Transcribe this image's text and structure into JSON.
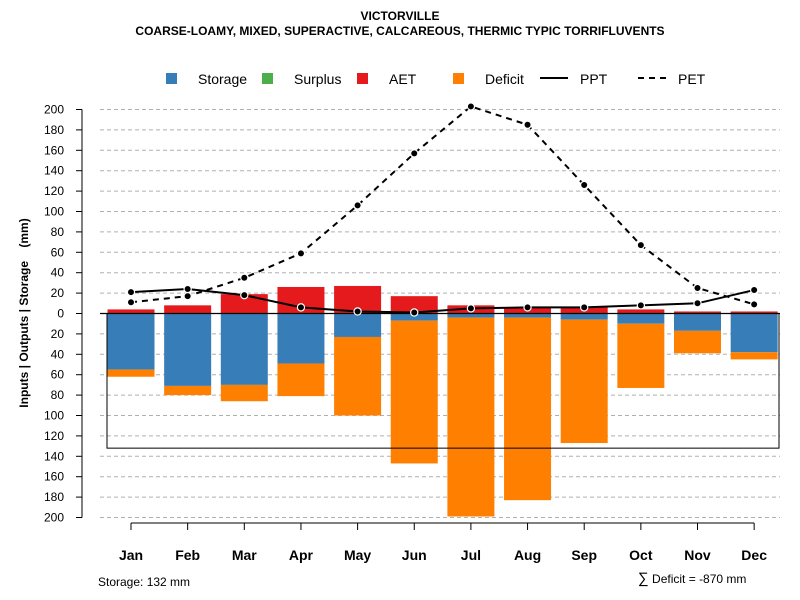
{
  "chart_data": {
    "type": "bar",
    "title": "VICTORVILLE",
    "subtitle": "COARSE-LOAMY, MIXED, SUPERACTIVE, CALCAREOUS, THERMIC TYPIC TORRIFLUVENTS",
    "ylabel": "Inputs | Outputs | Storage    (mm)",
    "xlabel": "",
    "ylim": [
      -200,
      210
    ],
    "yticks": [
      200,
      180,
      160,
      140,
      120,
      100,
      80,
      60,
      40,
      20,
      0,
      -20,
      -40,
      -60,
      -80,
      -100,
      -120,
      -140,
      -160,
      -180,
      -200
    ],
    "ytick_labels": [
      "200",
      "180",
      "160",
      "140",
      "120",
      "100",
      "80",
      "60",
      "40",
      "20",
      "0",
      "20",
      "40",
      "60",
      "80",
      "100",
      "120",
      "140",
      "160",
      "180",
      "200"
    ],
    "categories": [
      "Jan",
      "Feb",
      "Mar",
      "Apr",
      "May",
      "Jun",
      "Jul",
      "Aug",
      "Sep",
      "Oct",
      "Nov",
      "Dec"
    ],
    "grid": true,
    "legend": [
      "Storage",
      "Surplus",
      "AET",
      "Deficit",
      "PPT",
      "PET"
    ],
    "colors": {
      "storage": "#377eb8",
      "surplus": "#4daf4a",
      "aet": "#e41a1c",
      "deficit": "#ff7f00",
      "line": "#000000"
    },
    "series": [
      {
        "name": "Storage",
        "values": [
          55,
          71,
          70,
          49,
          23,
          7,
          4,
          4,
          6,
          10,
          17,
          38
        ]
      },
      {
        "name": "Surplus",
        "values": [
          0,
          0,
          0,
          0,
          0,
          0,
          0,
          0,
          0,
          0,
          0,
          0
        ]
      },
      {
        "name": "AET",
        "values": [
          4,
          8,
          19,
          26,
          27,
          17,
          8,
          6,
          6,
          4,
          2,
          2
        ]
      },
      {
        "name": "Deficit",
        "values": [
          7,
          9,
          16,
          32,
          77,
          140,
          195,
          179,
          121,
          63,
          22,
          7
        ]
      },
      {
        "name": "PPT",
        "values": [
          21,
          24,
          18,
          6,
          2,
          1,
          5,
          6,
          6,
          8,
          10,
          23
        ]
      },
      {
        "name": "PET",
        "values": [
          11,
          17,
          35,
          59,
          106,
          157,
          203,
          185,
          126,
          67,
          25,
          9
        ]
      }
    ],
    "storage_capacity": 132,
    "footer_storage": "Storage: 132 mm",
    "footer_deficit": "Deficit = -870 mm",
    "footer_symbol": "∑"
  }
}
